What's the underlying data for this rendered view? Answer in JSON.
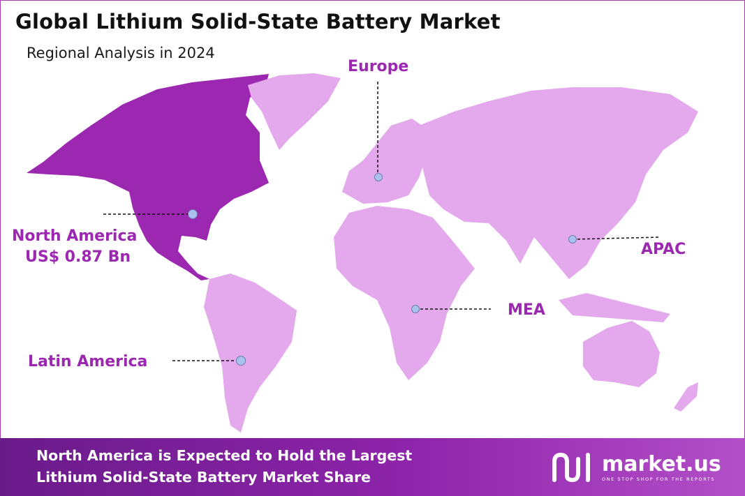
{
  "title": "Global Lithium Solid-State Battery Market",
  "subtitle": "Regional Analysis in 2024",
  "regions": {
    "north_america": {
      "name": "North America",
      "value": "US$ 0.87 Bn",
      "highlighted": true
    },
    "europe": {
      "name": "Europe"
    },
    "apac": {
      "name": "APAC"
    },
    "mea": {
      "name": "MEA"
    },
    "latin_america": {
      "name": "Latin America"
    }
  },
  "colors": {
    "highlight": "#9c27b0",
    "land": "#e4a8ec",
    "marker": "#a9c1ec",
    "label": "#9c27b0"
  },
  "footer": {
    "line1": "North America is Expected to Hold the Largest",
    "line2": "Lithium Solid-State Battery Market Share"
  },
  "brand": {
    "name": "market.us",
    "tagline": "ONE STOP SHOP FOR THE REPORTS",
    "icon": "marketus-logo-icon"
  }
}
